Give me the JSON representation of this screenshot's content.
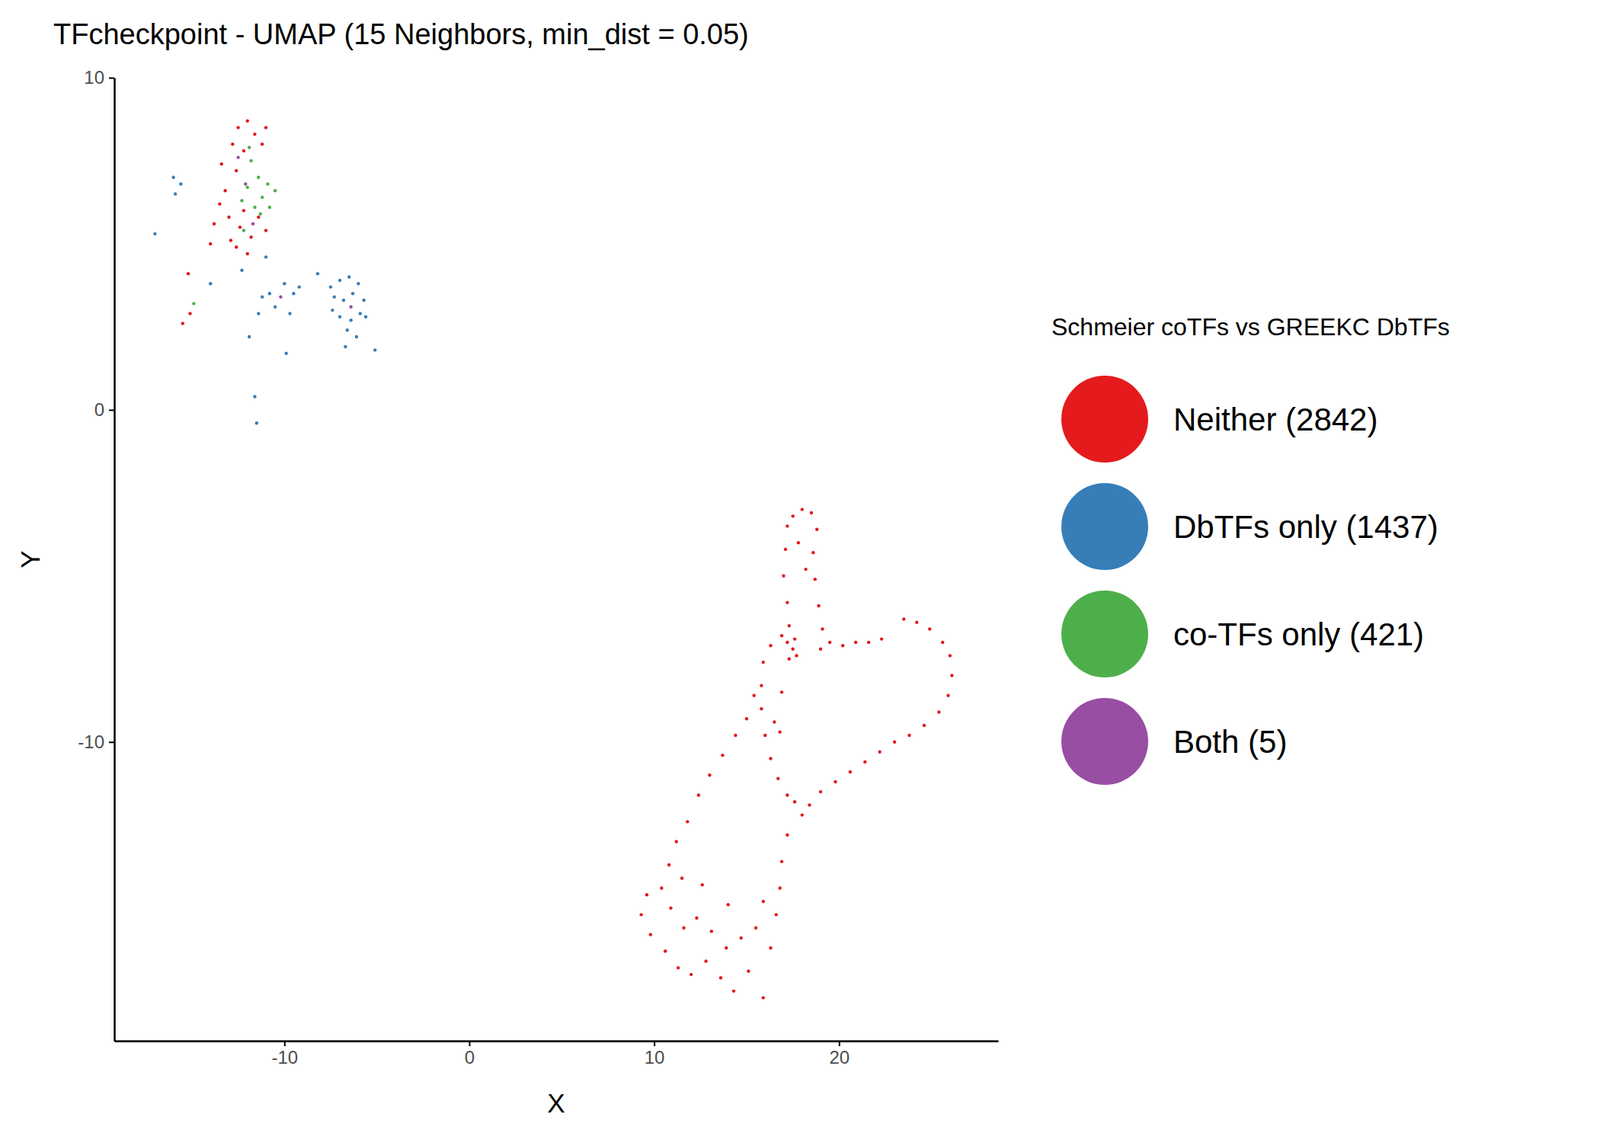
{
  "chart_data": {
    "type": "scatter",
    "title": "TFcheckpoint - UMAP (15 Neighbors, min_dist = 0.05)",
    "x_label": "X",
    "y_label": "Y",
    "legend_title": "Schmeier coTFs vs GREEKC DbTFs",
    "legend": "right",
    "grid": false,
    "xlim": [
      -19.2,
      28.6
    ],
    "ylim": [
      -19,
      10
    ],
    "xticks": [
      -10,
      0,
      10,
      20
    ],
    "yticks": [
      -10,
      0,
      10
    ],
    "series": [
      {
        "name": "Neither (2842)",
        "color": "#e41a1c",
        "marker": "circle",
        "x": [
          17.2,
          17.5,
          18.0,
          18.5,
          18.8,
          17.1,
          18.6,
          17.0,
          18.7,
          17.2,
          18.9,
          17.3,
          19.1,
          17.8,
          18.2,
          17.2,
          17.6,
          17.7,
          17.3,
          17.5,
          19.5,
          20.2,
          20.9,
          21.6,
          22.3,
          19.0,
          23.5,
          24.2,
          24.9,
          25.6,
          26.0,
          26.1,
          25.9,
          25.4,
          24.6,
          23.8,
          23.0,
          22.2,
          21.4,
          20.6,
          19.8,
          19.0,
          18.4,
          18.0,
          17.6,
          16.3,
          16.9,
          15.9,
          15.8,
          15.8,
          16.0,
          16.3,
          16.7,
          17.2,
          16.5,
          16.9,
          16.8,
          15.4,
          15.0,
          14.4,
          13.7,
          13.0,
          12.4,
          11.8,
          11.2,
          10.8,
          10.4,
          9.6,
          9.3,
          9.8,
          10.6,
          11.3,
          12.0,
          12.8,
          13.6,
          14.3,
          15.1,
          15.9,
          16.3,
          15.5,
          14.7,
          13.9,
          13.1,
          12.3,
          11.6,
          10.9,
          16.6,
          16.9,
          17.2,
          16.8,
          15.9,
          14.0,
          12.6,
          11.5,
          -12.5,
          -12.0,
          -11.6,
          -12.8,
          -12.2,
          -11.2,
          -13.4,
          -12.6,
          -11.0,
          -13.5,
          -13.0,
          -12.4,
          -11.8,
          -13.8,
          -12.9,
          -12.2,
          -11.4,
          -13.2,
          -12.6,
          -14.0,
          -11.0,
          -12.0,
          -15.2,
          -15.5,
          -15.1
        ],
        "values": [
          -3.5,
          -3.2,
          -3.0,
          -3.1,
          -3.6,
          -4.2,
          -4.3,
          -5.0,
          -5.1,
          -5.8,
          -5.9,
          -6.5,
          -6.6,
          -4.0,
          -4.8,
          -7.0,
          -6.9,
          -7.4,
          -7.5,
          -7.2,
          -7.0,
          -7.1,
          -7.0,
          -7.0,
          -6.9,
          -7.2,
          -6.3,
          -6.4,
          -6.6,
          -7.0,
          -7.4,
          -8.0,
          -8.6,
          -9.1,
          -9.5,
          -9.8,
          -10.0,
          -10.3,
          -10.6,
          -10.9,
          -11.2,
          -11.5,
          -11.9,
          -12.2,
          -11.8,
          -7.1,
          -6.8,
          -7.6,
          -8.3,
          -9.0,
          -9.8,
          -10.5,
          -11.1,
          -11.6,
          -9.4,
          -8.5,
          -9.7,
          -8.6,
          -9.3,
          -9.8,
          -10.4,
          -11.0,
          -11.6,
          -12.4,
          -13.0,
          -13.7,
          -14.4,
          -14.6,
          -15.2,
          -15.8,
          -16.3,
          -16.8,
          -17.0,
          -16.6,
          -17.1,
          -17.5,
          -16.9,
          -17.7,
          -16.2,
          -15.6,
          -15.9,
          -16.2,
          -15.7,
          -15.3,
          -15.6,
          -15.0,
          -15.2,
          -13.6,
          -12.8,
          -14.4,
          -14.8,
          -14.9,
          -14.3,
          -14.1,
          8.5,
          8.7,
          8.3,
          8.0,
          7.8,
          8.0,
          7.4,
          7.2,
          8.5,
          6.2,
          5.8,
          5.5,
          5.2,
          5.6,
          5.1,
          6.0,
          5.8,
          6.6,
          4.9,
          5.0,
          5.4,
          4.7,
          4.1,
          2.6,
          2.9
        ]
      },
      {
        "name": "DbTFs only (1437)",
        "color": "#377eb8",
        "marker": "circle",
        "x": [
          -7.0,
          -6.5,
          -6.0,
          -7.3,
          -6.8,
          -6.3,
          -5.7,
          -7.0,
          -6.4,
          -5.9,
          -6.6,
          -6.1,
          -7.5,
          -5.6,
          -6.7,
          -5.1,
          -10.0,
          -9.5,
          -10.5,
          -9.2,
          -10.8,
          -9.7,
          -9.9,
          -11.2,
          -11.4,
          -16.0,
          -15.9,
          -17.0,
          -11.6,
          -11.5,
          -12.3,
          -14.0,
          -11.0,
          -11.9,
          -7.4,
          -15.6,
          -8.2
        ],
        "values": [
          3.9,
          4.0,
          3.8,
          3.4,
          3.3,
          3.5,
          3.3,
          2.8,
          2.7,
          2.9,
          2.4,
          2.2,
          3.7,
          2.8,
          1.9,
          1.8,
          3.8,
          3.5,
          3.1,
          3.7,
          3.5,
          2.9,
          1.7,
          3.4,
          2.9,
          7.0,
          6.5,
          5.3,
          0.4,
          -0.4,
          4.2,
          3.8,
          4.6,
          2.2,
          3.0,
          6.8,
          4.1
        ]
      },
      {
        "name": "co-TFs only (421)",
        "color": "#4daf4a",
        "marker": "circle",
        "x": [
          -11.8,
          -11.4,
          -12.0,
          -11.2,
          -11.6,
          -10.9,
          -12.3,
          -11.3,
          -10.8,
          -11.9,
          -12.2,
          -10.5,
          -14.9
        ],
        "values": [
          7.5,
          7.0,
          6.7,
          6.4,
          6.1,
          6.8,
          6.3,
          5.9,
          6.1,
          7.9,
          5.4,
          6.6,
          3.2
        ]
      },
      {
        "name": "Both (5)",
        "color": "#984ea3",
        "marker": "circle",
        "x": [
          -12.1,
          -11.7,
          -12.5,
          -10.2,
          -6.4
        ],
        "values": [
          6.8,
          5.6,
          7.6,
          3.4,
          3.1
        ]
      }
    ]
  }
}
